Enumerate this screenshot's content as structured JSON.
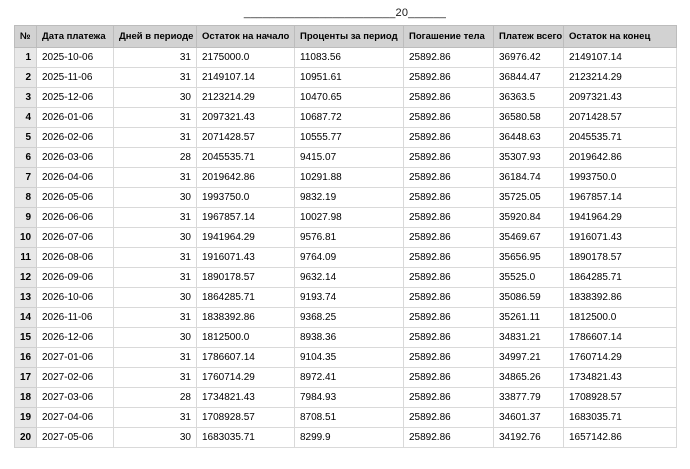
{
  "doc": {
    "blank_line": {
      "prefix": "________________________",
      "year": "20",
      "suffix": "______"
    }
  },
  "colors": {
    "header_bg": "#d2d2d2",
    "row_number_bg": "#e8e8e8",
    "cell_border": "#d9d9d9",
    "header_border": "#bcbcbc",
    "text": "#000000",
    "page_bg": "#ffffff"
  },
  "table": {
    "columns": [
      {
        "key": "num",
        "label": "№"
      },
      {
        "key": "date",
        "label": "Дата платежа"
      },
      {
        "key": "days",
        "label": "Дней в периоде"
      },
      {
        "key": "start",
        "label": "Остаток на начало"
      },
      {
        "key": "interest",
        "label": "Проценты за период"
      },
      {
        "key": "principal",
        "label": "Погашение тела"
      },
      {
        "key": "total",
        "label": "Платеж всего"
      },
      {
        "key": "end",
        "label": "Остаток на конец"
      }
    ],
    "rows": [
      [
        "1",
        "2025-10-06",
        "31",
        "2175000.0",
        "11083.56",
        "25892.86",
        "36976.42",
        "2149107.14"
      ],
      [
        "2",
        "2025-11-06",
        "31",
        "2149107.14",
        "10951.61",
        "25892.86",
        "36844.47",
        "2123214.29"
      ],
      [
        "3",
        "2025-12-06",
        "30",
        "2123214.29",
        "10470.65",
        "25892.86",
        "36363.5",
        "2097321.43"
      ],
      [
        "4",
        "2026-01-06",
        "31",
        "2097321.43",
        "10687.72",
        "25892.86",
        "36580.58",
        "2071428.57"
      ],
      [
        "5",
        "2026-02-06",
        "31",
        "2071428.57",
        "10555.77",
        "25892.86",
        "36448.63",
        "2045535.71"
      ],
      [
        "6",
        "2026-03-06",
        "28",
        "2045535.71",
        "9415.07",
        "25892.86",
        "35307.93",
        "2019642.86"
      ],
      [
        "7",
        "2026-04-06",
        "31",
        "2019642.86",
        "10291.88",
        "25892.86",
        "36184.74",
        "1993750.0"
      ],
      [
        "8",
        "2026-05-06",
        "30",
        "1993750.0",
        "9832.19",
        "25892.86",
        "35725.05",
        "1967857.14"
      ],
      [
        "9",
        "2026-06-06",
        "31",
        "1967857.14",
        "10027.98",
        "25892.86",
        "35920.84",
        "1941964.29"
      ],
      [
        "10",
        "2026-07-06",
        "30",
        "1941964.29",
        "9576.81",
        "25892.86",
        "35469.67",
        "1916071.43"
      ],
      [
        "11",
        "2026-08-06",
        "31",
        "1916071.43",
        "9764.09",
        "25892.86",
        "35656.95",
        "1890178.57"
      ],
      [
        "12",
        "2026-09-06",
        "31",
        "1890178.57",
        "9632.14",
        "25892.86",
        "35525.0",
        "1864285.71"
      ],
      [
        "13",
        "2026-10-06",
        "30",
        "1864285.71",
        "9193.74",
        "25892.86",
        "35086.59",
        "1838392.86"
      ],
      [
        "14",
        "2026-11-06",
        "31",
        "1838392.86",
        "9368.25",
        "25892.86",
        "35261.11",
        "1812500.0"
      ],
      [
        "15",
        "2026-12-06",
        "30",
        "1812500.0",
        "8938.36",
        "25892.86",
        "34831.21",
        "1786607.14"
      ],
      [
        "16",
        "2027-01-06",
        "31",
        "1786607.14",
        "9104.35",
        "25892.86",
        "34997.21",
        "1760714.29"
      ],
      [
        "17",
        "2027-02-06",
        "31",
        "1760714.29",
        "8972.41",
        "25892.86",
        "34865.26",
        "1734821.43"
      ],
      [
        "18",
        "2027-03-06",
        "28",
        "1734821.43",
        "7984.93",
        "25892.86",
        "33877.79",
        "1708928.57"
      ],
      [
        "19",
        "2027-04-06",
        "31",
        "1708928.57",
        "8708.51",
        "25892.86",
        "34601.37",
        "1683035.71"
      ],
      [
        "20",
        "2027-05-06",
        "30",
        "1683035.71",
        "8299.9",
        "25892.86",
        "34192.76",
        "1657142.86"
      ]
    ]
  }
}
